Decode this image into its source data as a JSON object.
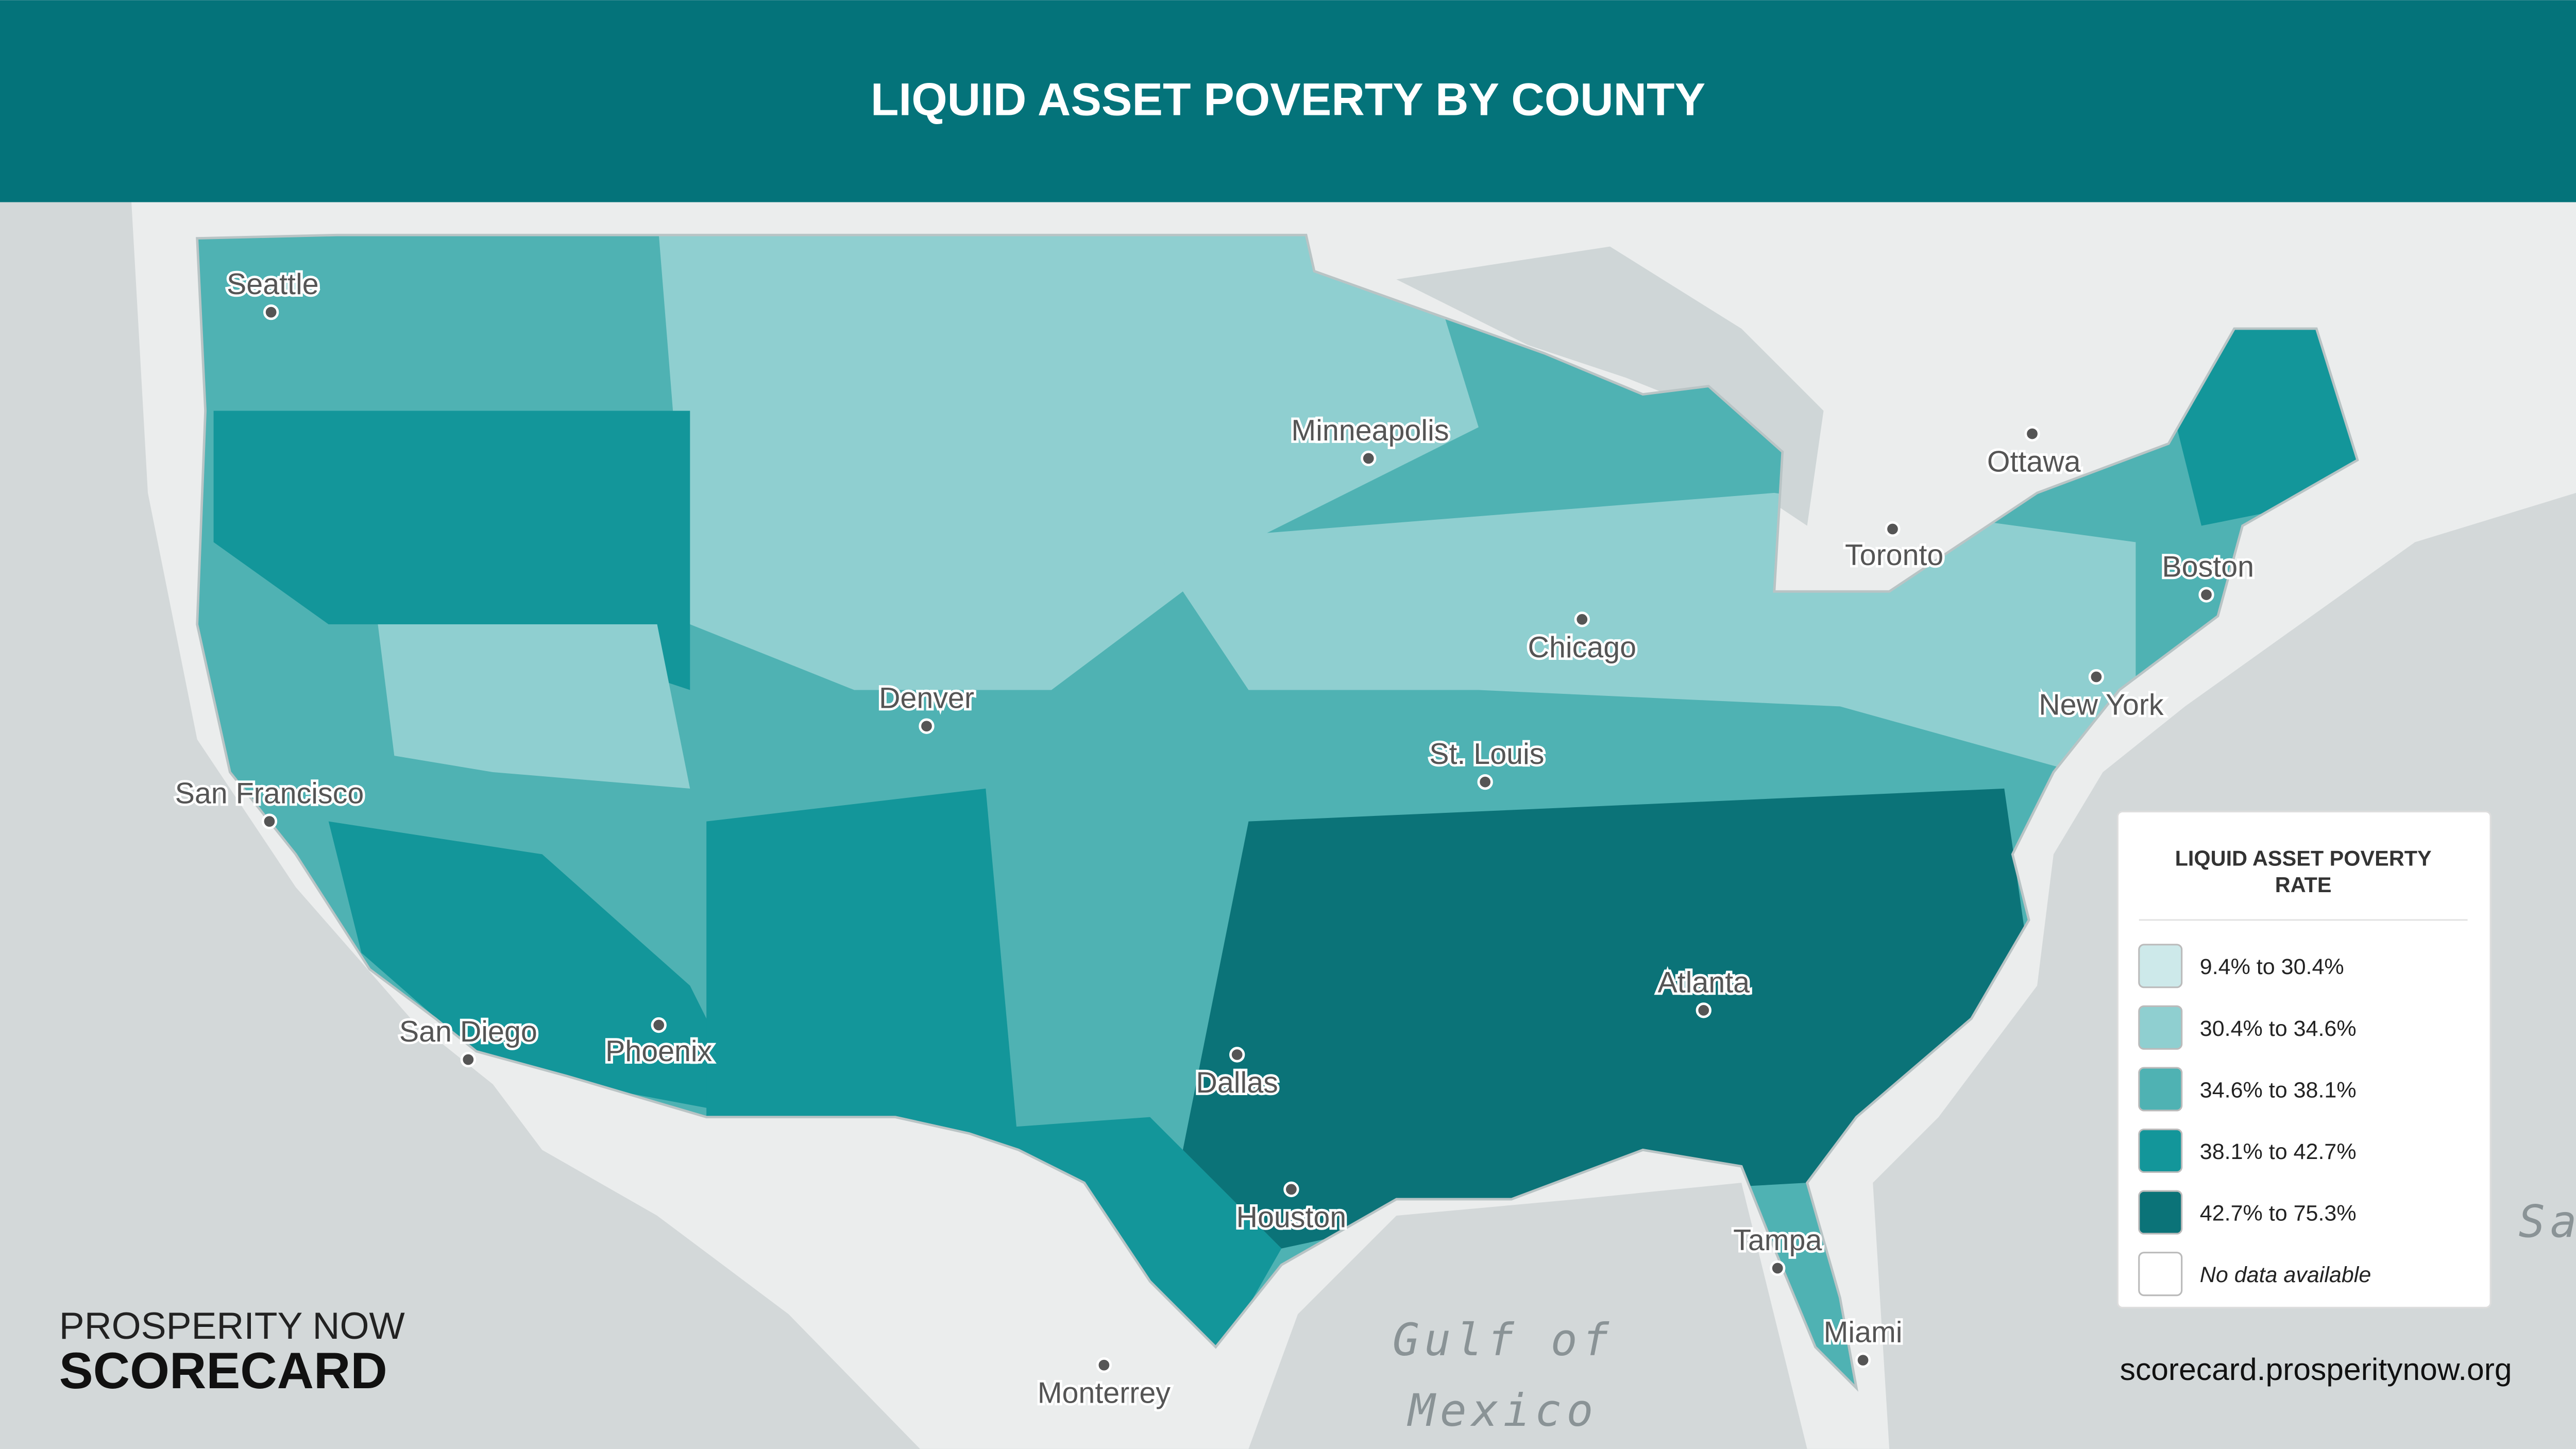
{
  "header": {
    "title": "LIQUID ASSET POVERTY BY COUNTY"
  },
  "map": {
    "places": [
      "Seattle",
      "Minneapolis",
      "Ottawa",
      "Toronto",
      "Boston",
      "Chicago",
      "New York",
      "Denver",
      "St. Louis",
      "San Francisco",
      "Atlanta",
      "San Diego",
      "Phoenix",
      "Dallas",
      "Houston",
      "Tampa",
      "Miami",
      "Monterrey"
    ],
    "water_labels": [
      "Gulf of",
      "Mexico"
    ],
    "edge_label": "Sa"
  },
  "legend": {
    "title_lines": [
      "LIQUID ASSET POVERTY",
      "RATE"
    ],
    "items": [
      {
        "label": "9.4% to 30.4%",
        "color": "#cde9ea"
      },
      {
        "label": "30.4% to 34.6%",
        "color": "#8fcfd0"
      },
      {
        "label": "34.6% to 38.1%",
        "color": "#4fb2b3"
      },
      {
        "label": "38.1% to 42.7%",
        "color": "#13969a"
      },
      {
        "label": "42.7% to 75.3%",
        "color": "#0b7378"
      },
      {
        "label": "No data available",
        "color": "#ffffff"
      }
    ]
  },
  "branding": {
    "line1": "PROSPERITY NOW",
    "line2": "SCORECARD"
  },
  "footer": {
    "url": "scorecard.prosperitynow.org"
  }
}
